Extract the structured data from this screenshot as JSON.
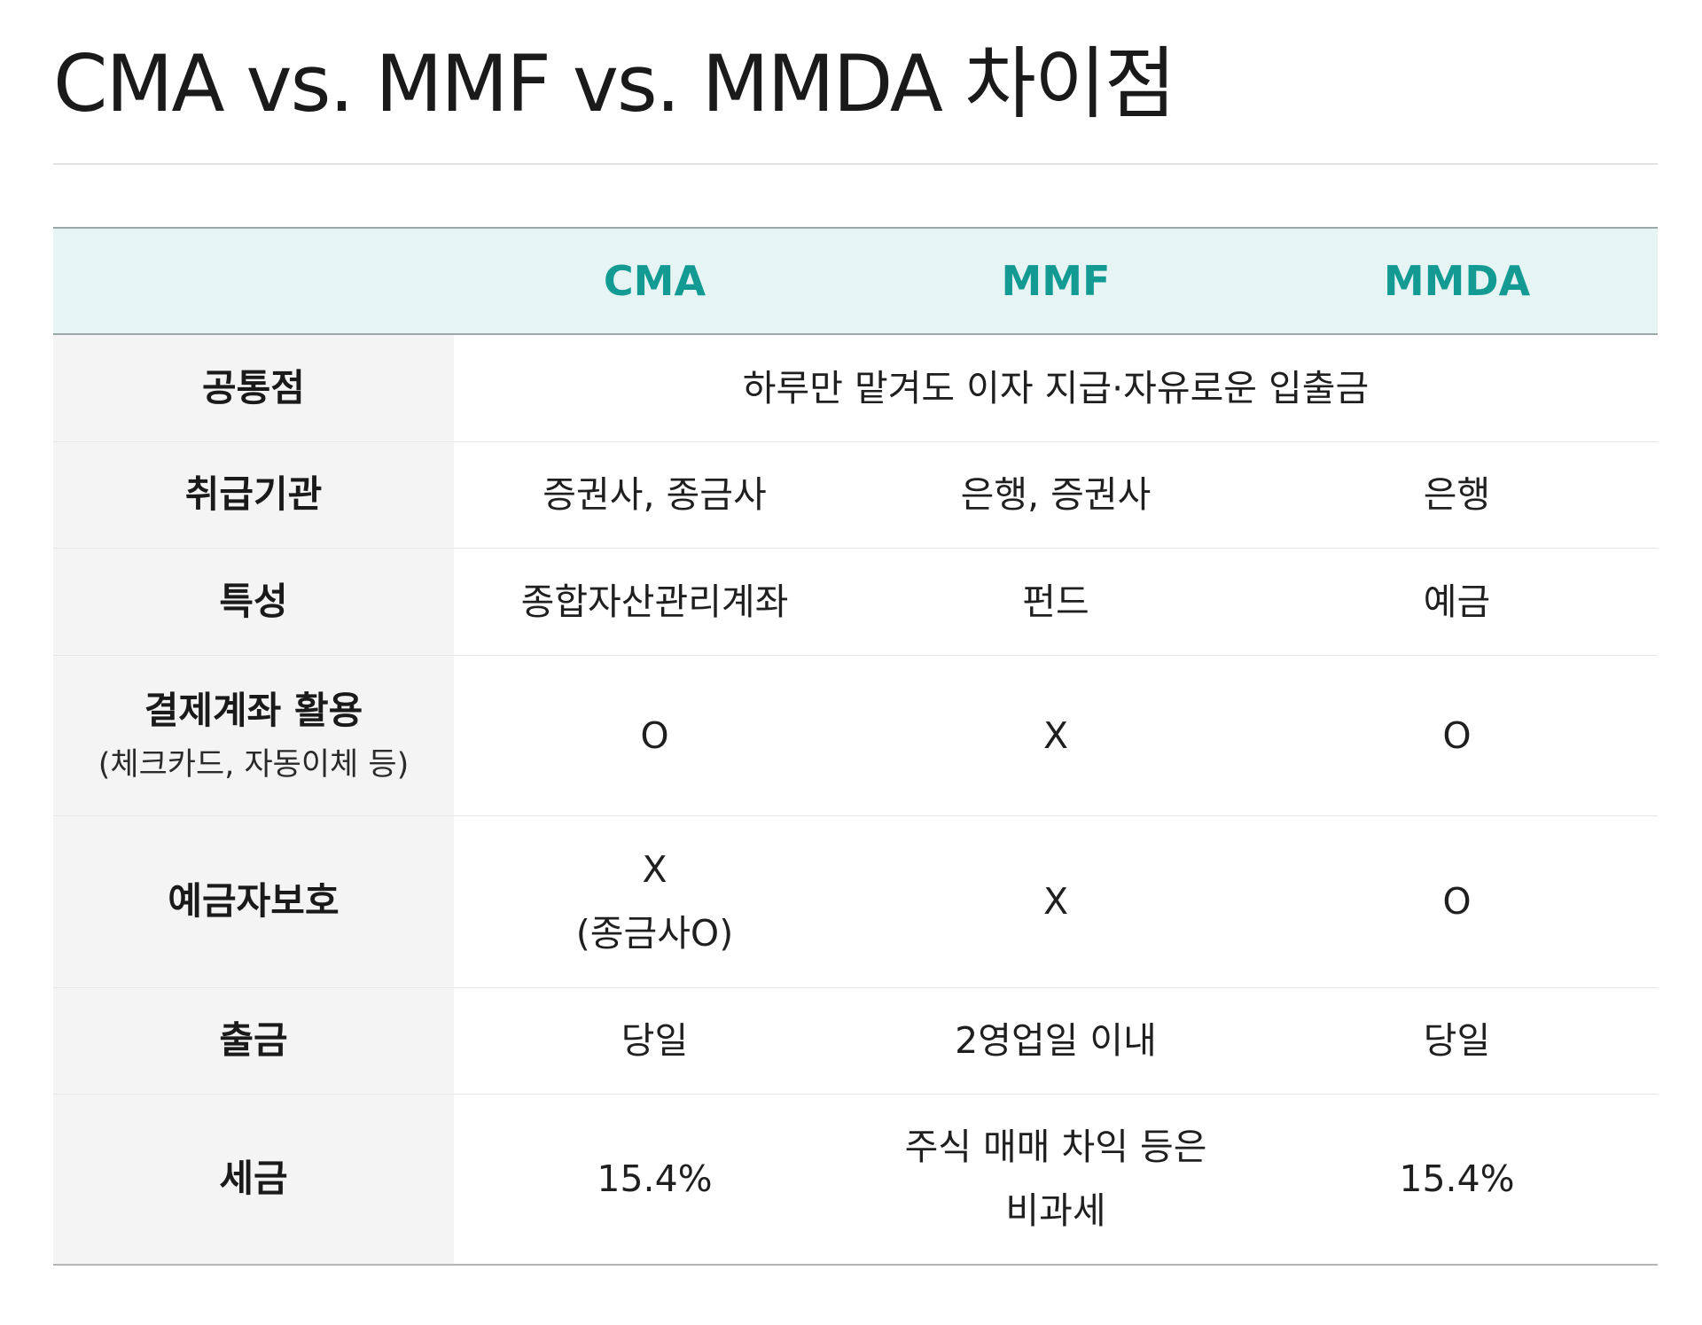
{
  "title": "CMA vs. MMF vs. MMDA 차이점",
  "table": {
    "columns": [
      "",
      "CMA",
      "MMF",
      "MMDA"
    ],
    "rows": [
      {
        "label": "공통점",
        "merged": "하루만 맡겨도 이자 지급·자유로운 입출금"
      },
      {
        "label": "취급기관",
        "cma": "증권사, 종금사",
        "mmf": "은행, 증권사",
        "mmda": "은행"
      },
      {
        "label": "특성",
        "cma": "종합자산관리계좌",
        "mmf": "펀드",
        "mmda": "예금"
      },
      {
        "label": "결제계좌 활용",
        "sublabel": "(체크카드, 자동이체 등)",
        "cma": "O",
        "mmf": "X",
        "mmda": "O"
      },
      {
        "label": "예금자보호",
        "cma_line1": "X",
        "cma_line2": "(종금사O)",
        "mmf": "X",
        "mmda": "O"
      },
      {
        "label": "출금",
        "cma": "당일",
        "mmf": "2영업일 이내",
        "mmda": "당일"
      },
      {
        "label": "세금",
        "cma": "15.4%",
        "mmf_line1": "주식 매매 차익 등은",
        "mmf_line2": "비과세",
        "mmda": "15.4%"
      }
    ]
  },
  "colors": {
    "header_bg": "#e6f4f4",
    "header_text": "#129a93",
    "rowhead_bg": "#f4f4f4"
  }
}
